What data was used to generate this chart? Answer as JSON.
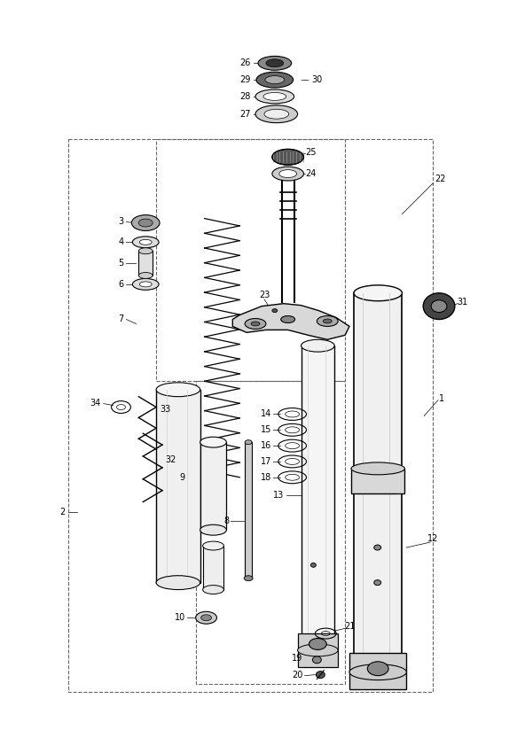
{
  "bg_color": "#ffffff",
  "lc": "#000000",
  "dc": "#666666",
  "fig_w": 5.83,
  "fig_h": 8.24,
  "dpi": 100
}
